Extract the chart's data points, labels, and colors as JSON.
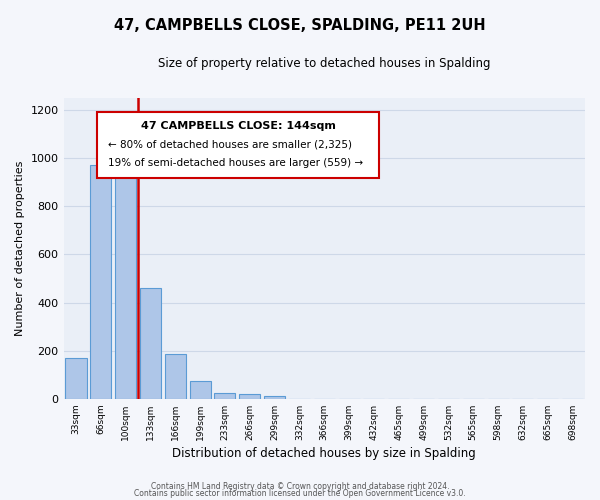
{
  "title": "47, CAMPBELLS CLOSE, SPALDING, PE11 2UH",
  "subtitle": "Size of property relative to detached houses in Spalding",
  "xlabel": "Distribution of detached houses by size in Spalding",
  "ylabel": "Number of detached properties",
  "bin_labels": [
    "33sqm",
    "66sqm",
    "100sqm",
    "133sqm",
    "166sqm",
    "199sqm",
    "233sqm",
    "266sqm",
    "299sqm",
    "332sqm",
    "366sqm",
    "399sqm",
    "432sqm",
    "465sqm",
    "499sqm",
    "532sqm",
    "565sqm",
    "598sqm",
    "632sqm",
    "665sqm",
    "698sqm"
  ],
  "bar_heights": [
    170,
    970,
    1000,
    460,
    185,
    75,
    25,
    20,
    10,
    0,
    0,
    0,
    0,
    0,
    0,
    0,
    0,
    0,
    0,
    0,
    0
  ],
  "bar_color": "#aec6e8",
  "bar_edge_color": "#5b9bd5",
  "annotation_title": "47 CAMPBELLS CLOSE: 144sqm",
  "annotation_line1": "← 80% of detached houses are smaller (2,325)",
  "annotation_line2": "19% of semi-detached houses are larger (559) →",
  "annotation_box_color": "#ffffff",
  "annotation_box_edge_color": "#cc0000",
  "red_line_color": "#cc0000",
  "ylim": [
    0,
    1250
  ],
  "yticks": [
    0,
    200,
    400,
    600,
    800,
    1000,
    1200
  ],
  "grid_color": "#ced8e8",
  "background_color": "#eaeff7",
  "fig_background_color": "#f4f6fb",
  "footer_line1": "Contains HM Land Registry data © Crown copyright and database right 2024.",
  "footer_line2": "Contains public sector information licensed under the Open Government Licence v3.0."
}
